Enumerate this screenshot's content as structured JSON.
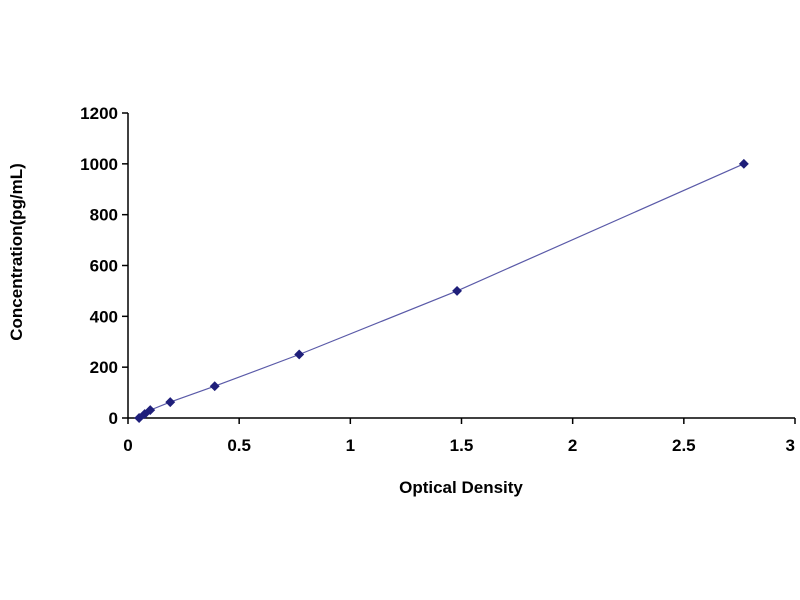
{
  "chart_data": {
    "type": "scatter",
    "title": "",
    "xlabel": "Optical Density",
    "ylabel": "Concentration(pg/mL)",
    "xlim": [
      0,
      3
    ],
    "ylim": [
      0,
      1200
    ],
    "xticks": [
      "0",
      "0.5",
      "1",
      "1.5",
      "2",
      "2.5",
      "3"
    ],
    "yticks": [
      "0",
      "200",
      "400",
      "600",
      "800",
      "1000",
      "1200"
    ],
    "grid": false,
    "legend": "none",
    "series": [
      {
        "points": [
          {
            "x": 0.05,
            "y": 0
          },
          {
            "x": 0.075,
            "y": 15.6
          },
          {
            "x": 0.1,
            "y": 31.2
          },
          {
            "x": 0.19,
            "y": 62.5
          },
          {
            "x": 0.39,
            "y": 125
          },
          {
            "x": 0.77,
            "y": 250
          },
          {
            "x": 1.48,
            "y": 500
          },
          {
            "x": 2.77,
            "y": 1000
          }
        ],
        "fit_line": true,
        "marker_color": "#1f1f7a",
        "line_color": "#5a5aa8"
      }
    ]
  }
}
